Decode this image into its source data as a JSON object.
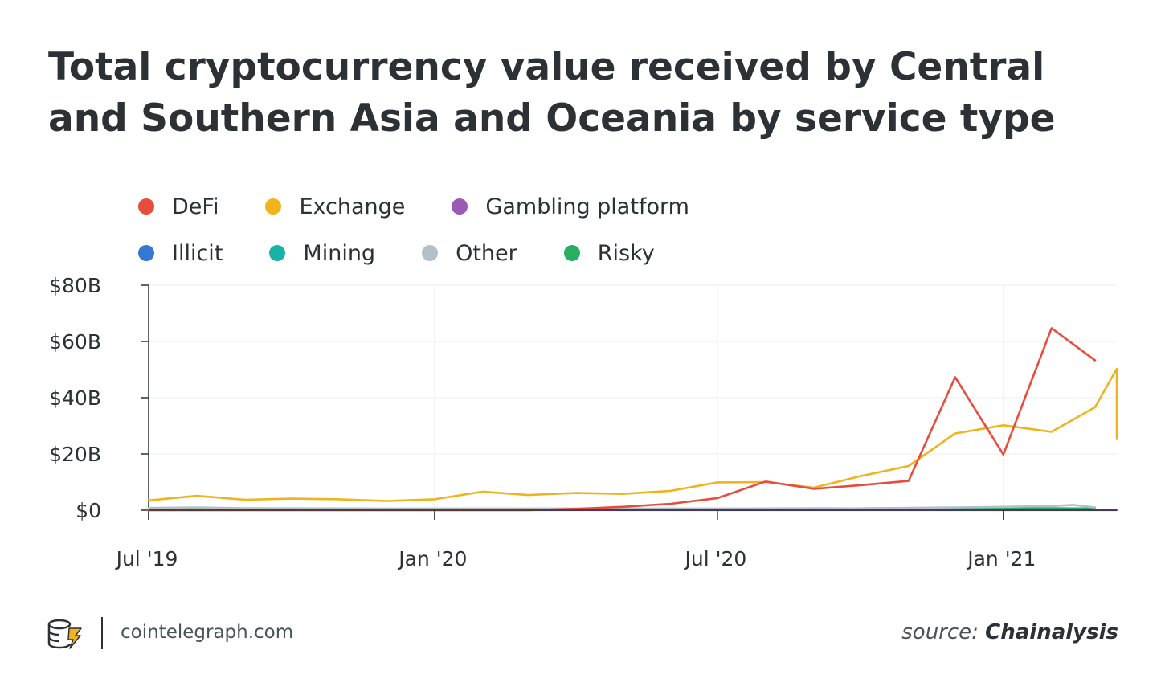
{
  "title": "Total cryptocurrency value received by Central and Southern Asia and Oceania by service type",
  "footer": {
    "site": "cointelegraph.com",
    "source_prefix": "source:",
    "source_name": "Chainalysis"
  },
  "chart_data": {
    "type": "line",
    "title": "Total cryptocurrency value received by Central and Southern Asia and Oceania by service type",
    "xlabel": "",
    "ylabel": "",
    "ylim": [
      0,
      80
    ],
    "y_ticks": [
      0,
      20,
      40,
      60,
      80
    ],
    "y_tick_labels": [
      "$0",
      "$20B",
      "$40B",
      "$60B",
      "$80B"
    ],
    "x_range": [
      "2019-07-01",
      "2021-03-15"
    ],
    "x_ticks": [
      "2019-07-01",
      "2020-01-01",
      "2020-07-01",
      "2021-01-01"
    ],
    "x_tick_labels": [
      "Jul '19",
      "Jan '20",
      "Jul '20",
      "Jan '21"
    ],
    "grid": true,
    "legend_position": "top-left",
    "x": [
      "2019-07-01",
      "2019-07-16",
      "2019-08-01",
      "2019-08-16",
      "2019-09-01",
      "2019-09-16",
      "2019-10-01",
      "2019-10-16",
      "2019-11-01",
      "2019-11-16",
      "2019-12-01",
      "2019-12-16",
      "2020-01-01",
      "2020-01-16",
      "2020-02-01",
      "2020-02-16",
      "2020-03-01",
      "2020-03-16",
      "2020-04-01",
      "2020-04-16",
      "2020-05-01",
      "2020-05-16",
      "2020-06-01",
      "2020-06-16",
      "2020-07-01",
      "2020-07-16",
      "2020-08-01",
      "2020-08-16",
      "2020-09-01",
      "2020-09-16",
      "2020-10-01",
      "2020-10-16",
      "2020-11-01",
      "2020-11-16",
      "2020-12-01",
      "2020-12-16",
      "2021-01-01",
      "2021-01-16",
      "2021-02-01",
      "2021-02-16",
      "2021-03-01",
      "2021-03-15"
    ],
    "series": [
      {
        "name": "DeFi",
        "color": "#e74c3c",
        "points": [
          [
            "2019-07-01",
            0
          ],
          [
            "2020-03-01",
            0
          ],
          [
            "2020-04-01",
            0.5
          ],
          [
            "2020-05-01",
            1.2
          ],
          [
            "2020-06-01",
            2.3
          ],
          [
            "2020-07-01",
            4.3
          ],
          [
            "2020-08-01",
            10.2
          ],
          [
            "2020-09-01",
            7.6
          ],
          [
            "2020-10-01",
            8.9
          ],
          [
            "2020-11-01",
            10.4
          ],
          [
            "2020-12-01",
            47.3
          ],
          [
            "2021-01-01",
            19.8
          ],
          [
            "2021-02-01",
            64.7
          ],
          [
            "2021-03-01",
            53.3
          ]
        ]
      },
      {
        "name": "Exchange",
        "color": "#f0b31d",
        "points": [
          [
            "2019-07-01",
            3.5
          ],
          [
            "2019-08-01",
            5.1
          ],
          [
            "2019-09-01",
            3.7
          ],
          [
            "2019-10-01",
            4.1
          ],
          [
            "2019-11-01",
            3.9
          ],
          [
            "2019-12-01",
            3.3
          ],
          [
            "2020-01-01",
            3.9
          ],
          [
            "2020-02-01",
            6.6
          ],
          [
            "2020-03-01",
            5.4
          ],
          [
            "2020-04-01",
            6.1
          ],
          [
            "2020-05-01",
            5.8
          ],
          [
            "2020-06-01",
            6.9
          ],
          [
            "2020-07-01",
            9.9
          ],
          [
            "2020-08-01",
            10.0
          ],
          [
            "2020-09-01",
            8.0
          ],
          [
            "2020-10-01",
            12.1
          ],
          [
            "2020-11-01",
            15.7
          ],
          [
            "2020-12-01",
            27.3
          ],
          [
            "2021-01-01",
            30.2
          ],
          [
            "2021-02-01",
            27.9
          ],
          [
            "2021-03-01",
            36.6
          ],
          [
            "2021-03-15",
            50.3
          ],
          [
            "2021-03-30",
            25.3
          ]
        ]
      },
      {
        "name": "Gambling platform",
        "color": "#9b59b6",
        "points": [
          [
            "2019-07-01",
            0.05
          ],
          [
            "2021-03-15",
            0.05
          ]
        ]
      },
      {
        "name": "Illicit",
        "color": "#3478d1",
        "points": [
          [
            "2019-07-01",
            0.1
          ],
          [
            "2021-03-15",
            0.1
          ]
        ]
      },
      {
        "name": "Mining",
        "color": "#17b3a6",
        "points": [
          [
            "2019-07-01",
            0.2
          ],
          [
            "2021-03-15",
            0.2
          ]
        ]
      },
      {
        "name": "Other",
        "color": "#b3c0c8",
        "points": [
          [
            "2019-07-01",
            0.8
          ],
          [
            "2019-08-01",
            1.0
          ],
          [
            "2019-09-01",
            0.7
          ],
          [
            "2019-12-01",
            0.6
          ],
          [
            "2020-06-01",
            0.6
          ],
          [
            "2020-09-01",
            0.5
          ],
          [
            "2020-12-01",
            1.0
          ],
          [
            "2021-01-01",
            1.2
          ],
          [
            "2021-02-01",
            1.5
          ],
          [
            "2021-02-15",
            1.9
          ],
          [
            "2021-03-01",
            1.0
          ]
        ]
      },
      {
        "name": "Risky",
        "color": "#27ae60",
        "points": [
          [
            "2019-07-01",
            0.5
          ],
          [
            "2019-08-01",
            0.6
          ],
          [
            "2019-12-01",
            0.4
          ],
          [
            "2020-06-01",
            0.5
          ],
          [
            "2020-12-01",
            0.7
          ],
          [
            "2021-01-01",
            0.7
          ],
          [
            "2021-02-01",
            0.7
          ],
          [
            "2021-03-01",
            0.6
          ]
        ]
      }
    ]
  }
}
